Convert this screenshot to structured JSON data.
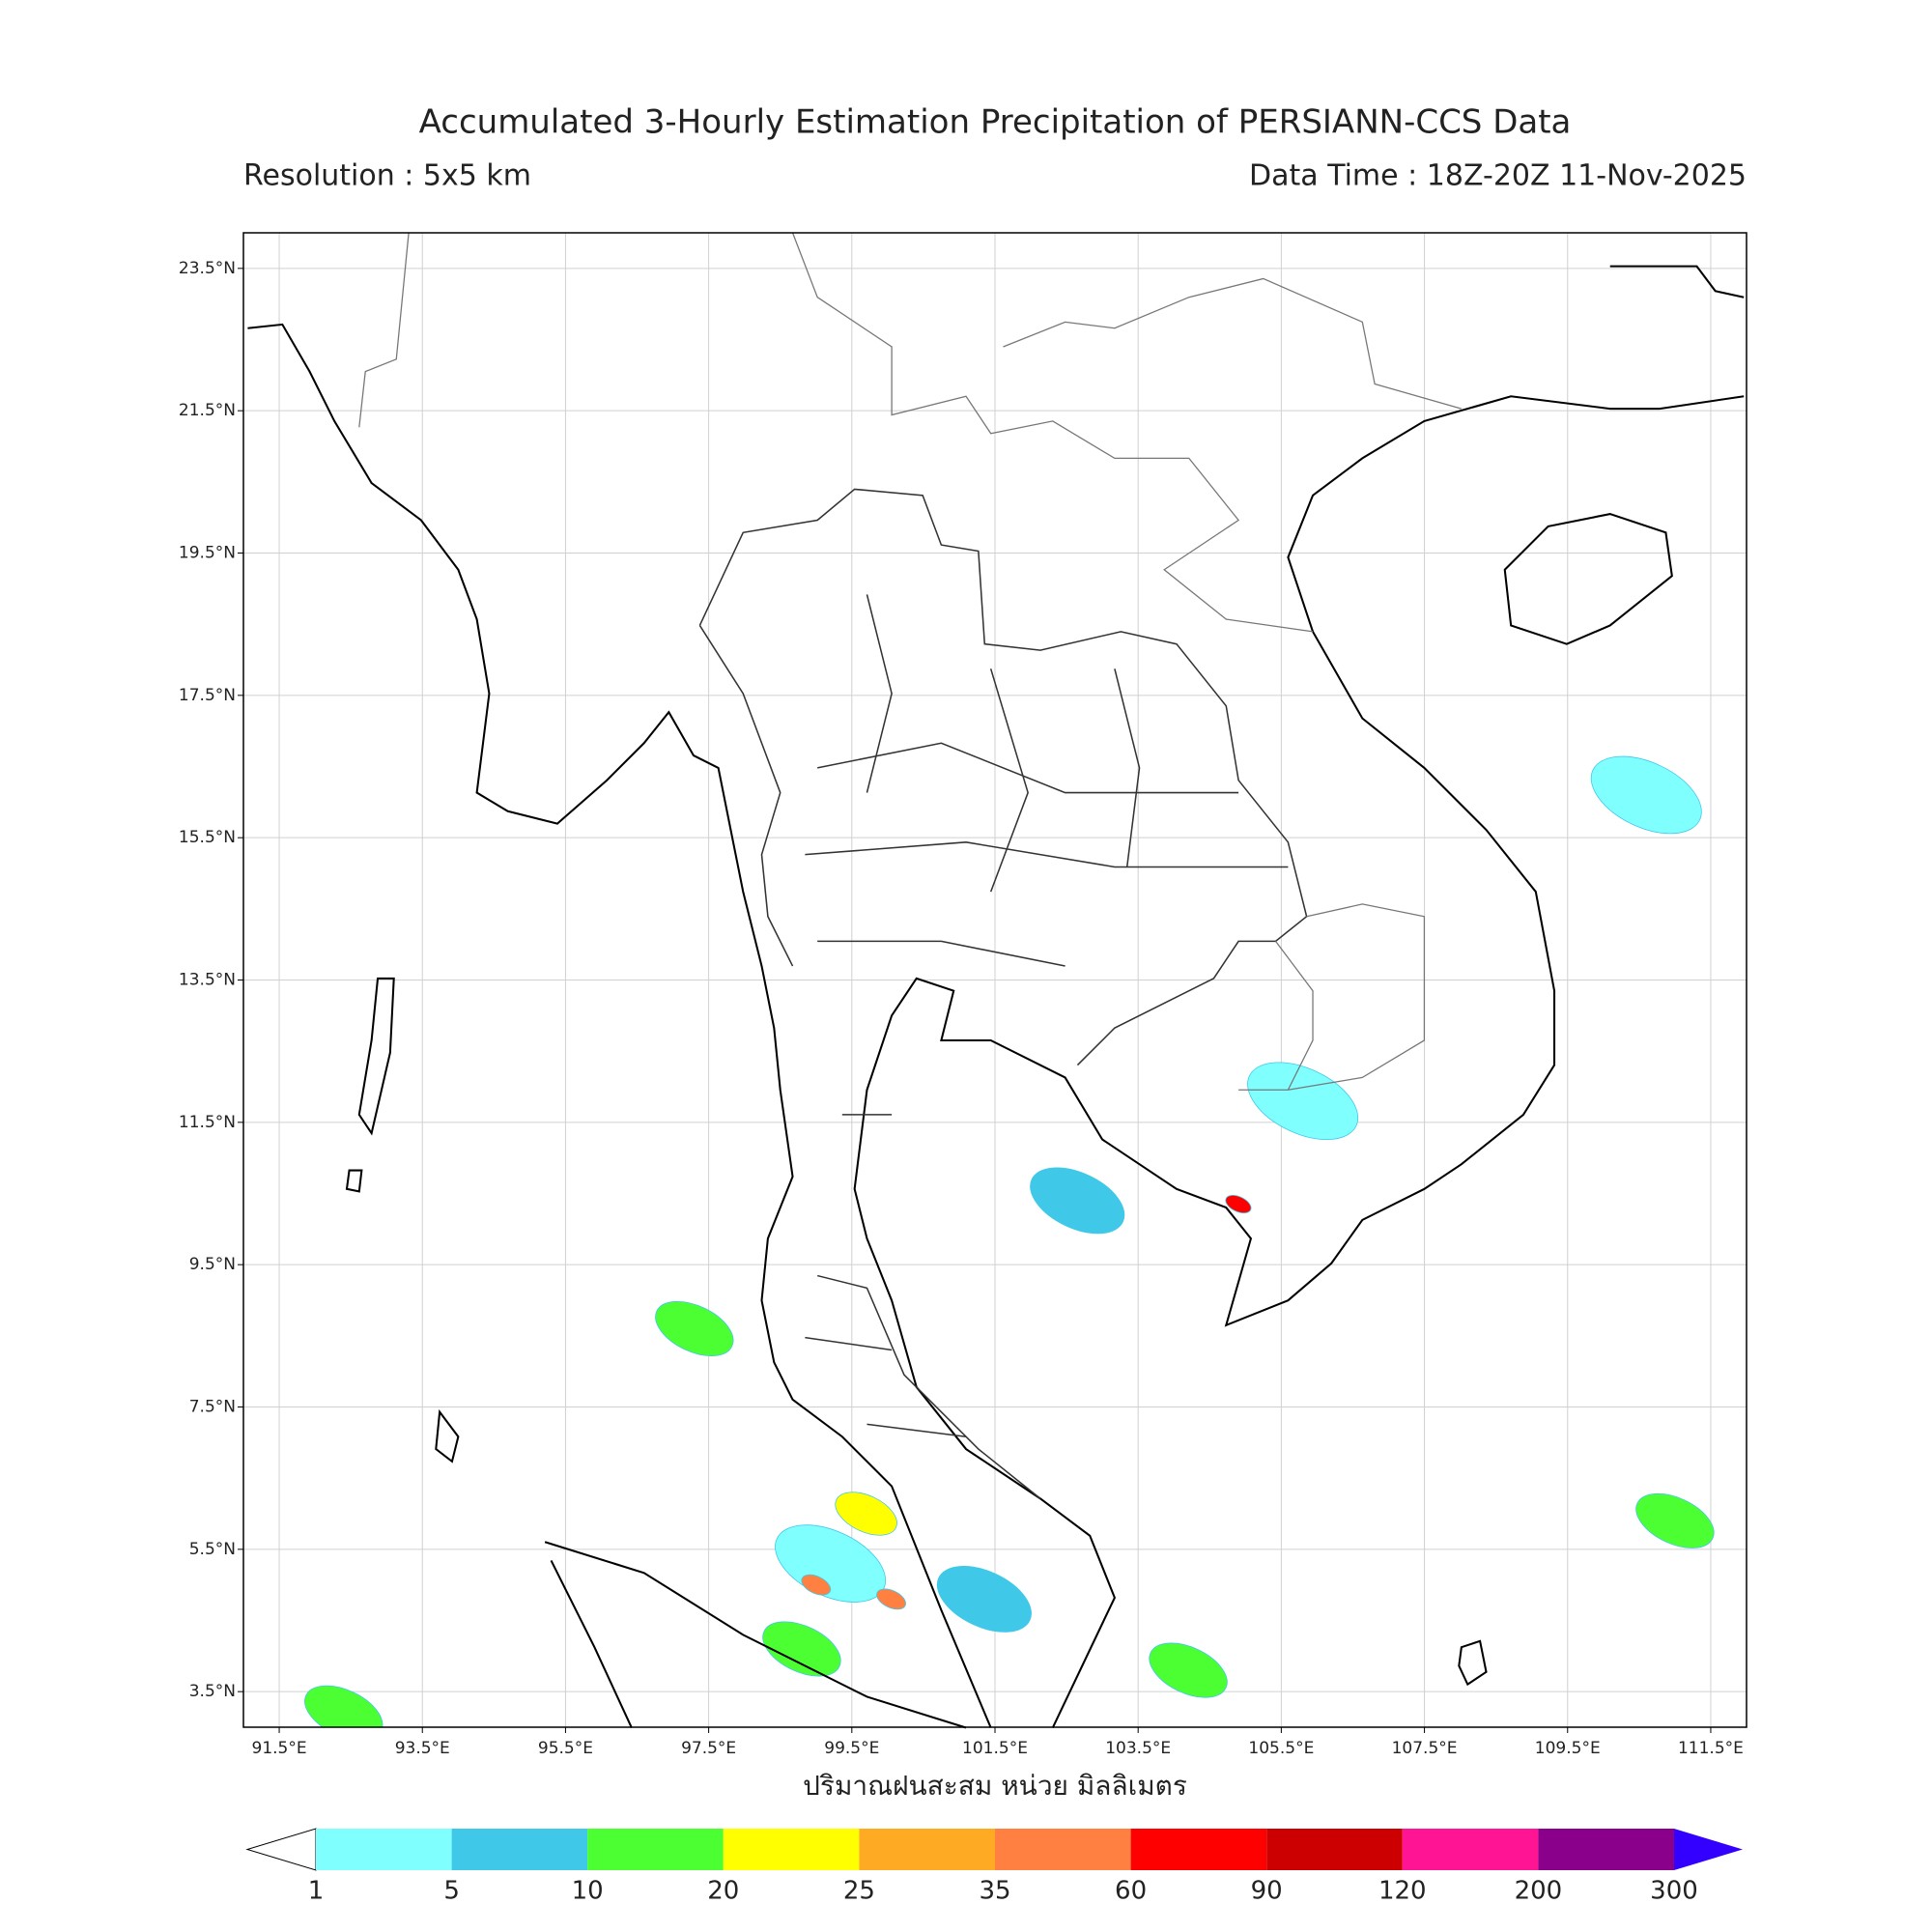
{
  "map": {
    "title": "Accumulated 3-Hourly Estimation Precipitation of PERSIANN-CCS Data",
    "resolution": "Resolution : 5x5 km",
    "data_time": "Data Time : 18Z-20Z 11-Nov-2025",
    "xlabel": "ปริมาณฝนสะสม หน่วย มิลลิเมตร",
    "xlim": [
      91,
      112
    ],
    "ylim": [
      3,
      24
    ],
    "xticks": [
      {
        "value": 91.5,
        "label": "91.5°E"
      },
      {
        "value": 93.5,
        "label": "93.5°E"
      },
      {
        "value": 95.5,
        "label": "95.5°E"
      },
      {
        "value": 97.5,
        "label": "97.5°E"
      },
      {
        "value": 99.5,
        "label": "99.5°E"
      },
      {
        "value": 101.5,
        "label": "101.5°E"
      },
      {
        "value": 103.5,
        "label": "103.5°E"
      },
      {
        "value": 105.5,
        "label": "105.5°E"
      },
      {
        "value": 107.5,
        "label": "107.5°E"
      },
      {
        "value": 109.5,
        "label": "109.5°E"
      },
      {
        "value": 111.5,
        "label": "111.5°E"
      }
    ],
    "yticks": [
      {
        "value": 3.5,
        "label": "3.5°N"
      },
      {
        "value": 5.5,
        "label": "5.5°N"
      },
      {
        "value": 7.5,
        "label": "7.5°N"
      },
      {
        "value": 9.5,
        "label": "9.5°N"
      },
      {
        "value": 11.5,
        "label": "11.5°N"
      },
      {
        "value": 13.5,
        "label": "13.5°N"
      },
      {
        "value": 15.5,
        "label": "15.5°N"
      },
      {
        "value": 17.5,
        "label": "17.5°N"
      },
      {
        "value": 19.5,
        "label": "19.5°N"
      },
      {
        "value": 21.5,
        "label": "21.5°N"
      },
      {
        "value": 23.5,
        "label": "23.5°N"
      }
    ],
    "grid": true,
    "colorbar": {
      "levels": [
        1,
        5,
        10,
        20,
        25,
        35,
        60,
        90,
        120,
        200,
        300
      ],
      "colors": [
        "#80ffff",
        "#40c8e8",
        "#4cff33",
        "#ffff00",
        "#ffaa22",
        "#ff8040",
        "#ff0000",
        "#cc0000",
        "#ff1493",
        "#8b008b"
      ],
      "under_color": "#ffffff",
      "over_color": "#3300ff"
    },
    "precipitation": [
      {
        "lon": 99.2,
        "lat": 5.3,
        "mm": 3
      },
      {
        "lon": 101.35,
        "lat": 4.8,
        "mm": 5
      },
      {
        "lon": 98.8,
        "lat": 4.1,
        "mm": 10
      },
      {
        "lon": 102.65,
        "lat": 10.4,
        "mm": 5
      },
      {
        "lon": 105.8,
        "lat": 11.8,
        "mm": 3
      },
      {
        "lon": 110.6,
        "lat": 16.1,
        "mm": 3
      },
      {
        "lon": 92.4,
        "lat": 3.2,
        "mm": 10
      },
      {
        "lon": 111.0,
        "lat": 5.9,
        "mm": 10
      },
      {
        "lon": 97.3,
        "lat": 8.6,
        "mm": 10
      },
      {
        "lon": 104.2,
        "lat": 3.8,
        "mm": 10
      },
      {
        "lon": 99.7,
        "lat": 6.0,
        "mm": 20
      },
      {
        "lon": 100.05,
        "lat": 4.8,
        "mm": 35
      },
      {
        "lon": 99.0,
        "lat": 5.0,
        "mm": 35
      },
      {
        "lon": 104.9,
        "lat": 10.35,
        "mm": 60
      }
    ]
  }
}
